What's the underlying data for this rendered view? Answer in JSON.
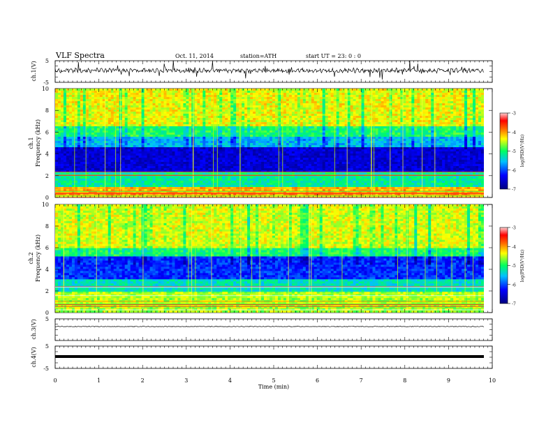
{
  "header": {
    "title": "VLF  Spectra",
    "date": "Oct. 11, 2014",
    "station": "station=ATH",
    "start": "start  UT  =    23: 0  : 0"
  },
  "chart_data": [
    {
      "type": "line",
      "panel": "ch1-waveform",
      "ylabel": "ch.1(V)",
      "ylim": [
        -5,
        5
      ],
      "yticks": [
        "5",
        "-5"
      ],
      "xlim": [
        0,
        10
      ]
    },
    {
      "type": "heatmap",
      "panel": "ch1-spectrogram",
      "ylabel": "ch.1\nFrequency (kHz)",
      "ylim": [
        0,
        10
      ],
      "yticks": [
        "0",
        "2",
        "4",
        "6",
        "8",
        "10"
      ],
      "xlim": [
        0,
        10
      ],
      "colorbar": {
        "label": "log(PSD(V²/Hz)",
        "range": [
          -7,
          -3
        ],
        "ticks": [
          "-3",
          "-4",
          "-5",
          "-6",
          "-7"
        ]
      }
    },
    {
      "type": "heatmap",
      "panel": "ch2-spectrogram",
      "ylabel": "ch.2\nFrequency (kHz)",
      "ylim": [
        0,
        10
      ],
      "yticks": [
        "0",
        "2",
        "4",
        "6",
        "8",
        "10"
      ],
      "xlim": [
        0,
        10
      ],
      "colorbar": {
        "label": "log(PSD(V²/Hz)",
        "range": [
          -7,
          -3
        ],
        "ticks": [
          "-3",
          "-4",
          "-5",
          "-6",
          "-7"
        ]
      }
    },
    {
      "type": "line",
      "panel": "ch3-waveform",
      "ylabel": "ch.3(V)",
      "ylim": [
        -5,
        5
      ],
      "yticks": [
        "5"
      ],
      "xlim": [
        0,
        10
      ]
    },
    {
      "type": "line",
      "panel": "ch4-waveform",
      "ylabel": "ch.4(V)",
      "ylim": [
        -5,
        5
      ],
      "yticks": [
        "5",
        "-5"
      ],
      "xlim": [
        0,
        10
      ],
      "xlabel": "Time  (min)",
      "xticks": [
        "0",
        "1",
        "2",
        "3",
        "4",
        "5",
        "6",
        "7",
        "8",
        "9",
        "10"
      ]
    }
  ],
  "colors": {
    "low": "#000080",
    "mid_low": "#0000ff",
    "cyan": "#00ffff",
    "green": "#00ff66",
    "yellow": "#ffff00",
    "high": "#ff0000"
  }
}
